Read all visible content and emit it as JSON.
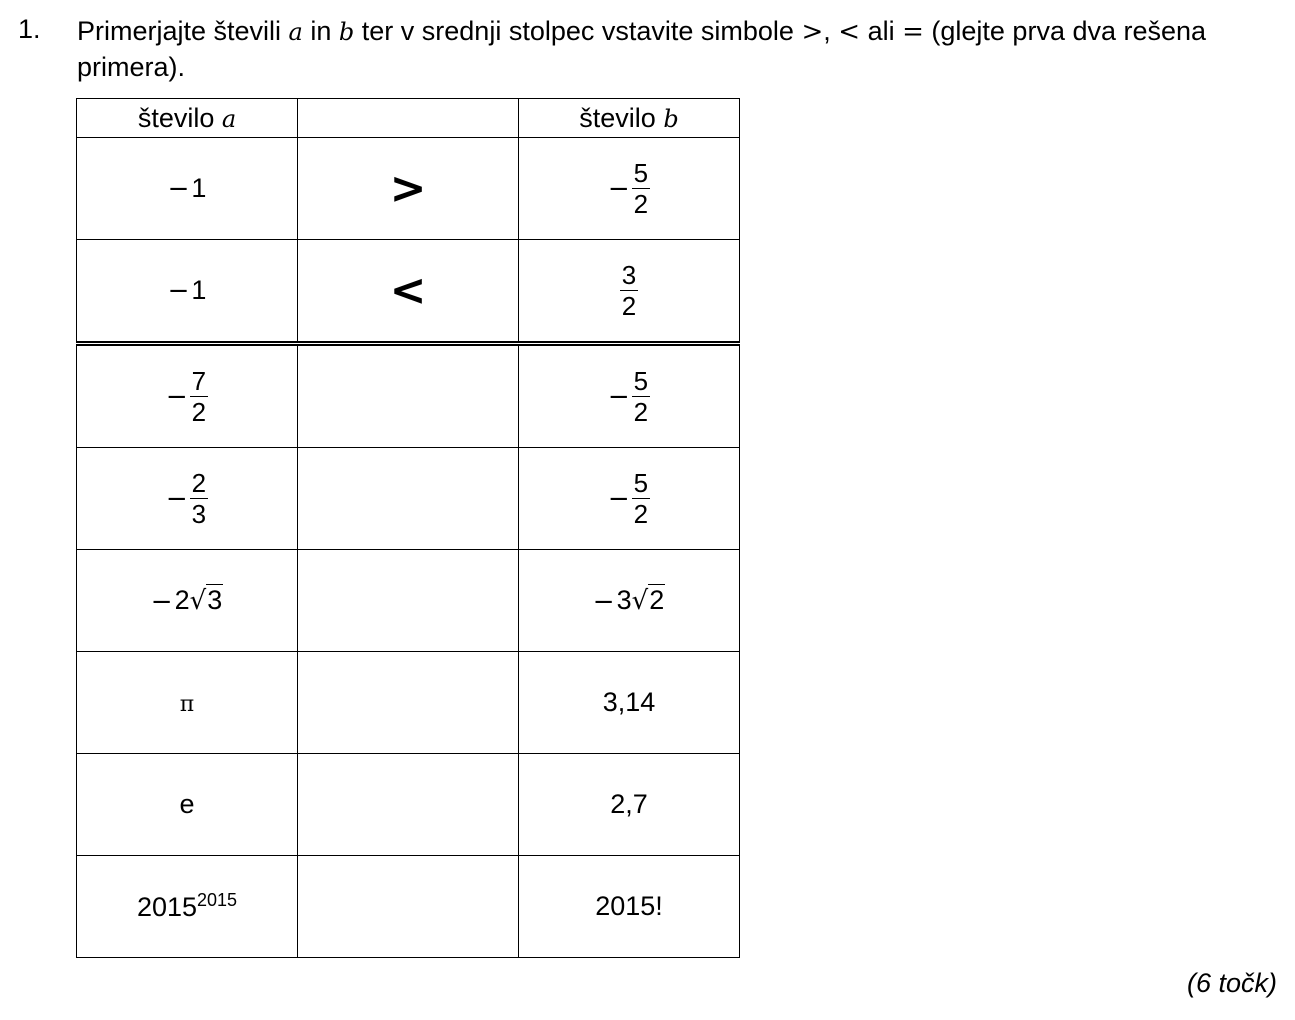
{
  "task": {
    "number": "1.",
    "text_parts": [
      "Primerjajte števili ",
      "a",
      " in ",
      "b",
      " ter v srednji stolpec vstavite simbole ",
      ">",
      ", ",
      "<",
      " ali ",
      "=",
      " (glejte prva dva rešena primera)."
    ],
    "points": "(6 točk)"
  },
  "table": {
    "header": {
      "col_a_label": "število",
      "col_a_var": "a",
      "col_b_label": "število",
      "col_b_var": "b"
    },
    "rows": [
      {
        "a": {
          "minus": "−",
          "value": "1"
        },
        "symbol": ">",
        "b": {
          "minus": "−",
          "num": "5",
          "den": "2"
        }
      },
      {
        "a": {
          "minus": "−",
          "value": "1"
        },
        "symbol": "<",
        "b": {
          "num": "3",
          "den": "2"
        }
      },
      {
        "a": {
          "minus": "−",
          "num": "7",
          "den": "2"
        },
        "symbol": "",
        "b": {
          "minus": "−",
          "num": "5",
          "den": "2"
        }
      },
      {
        "a": {
          "minus": "−",
          "num": "2",
          "den": "3"
        },
        "symbol": "",
        "b": {
          "minus": "−",
          "num": "5",
          "den": "2"
        }
      },
      {
        "a": {
          "minus": "−",
          "coef": "2",
          "radical": "√",
          "radicand": "3"
        },
        "symbol": "",
        "b": {
          "minus": "−",
          "coef": "3",
          "radical": "√",
          "radicand": "2"
        }
      },
      {
        "a": {
          "value": "π"
        },
        "symbol": "",
        "b": {
          "value": "3,14"
        }
      },
      {
        "a": {
          "value": "e"
        },
        "symbol": "",
        "b": {
          "value": "2,7"
        }
      },
      {
        "a": {
          "base": "2015",
          "exponent": "2015"
        },
        "symbol": "",
        "b": {
          "value": "2015!"
        }
      }
    ]
  }
}
